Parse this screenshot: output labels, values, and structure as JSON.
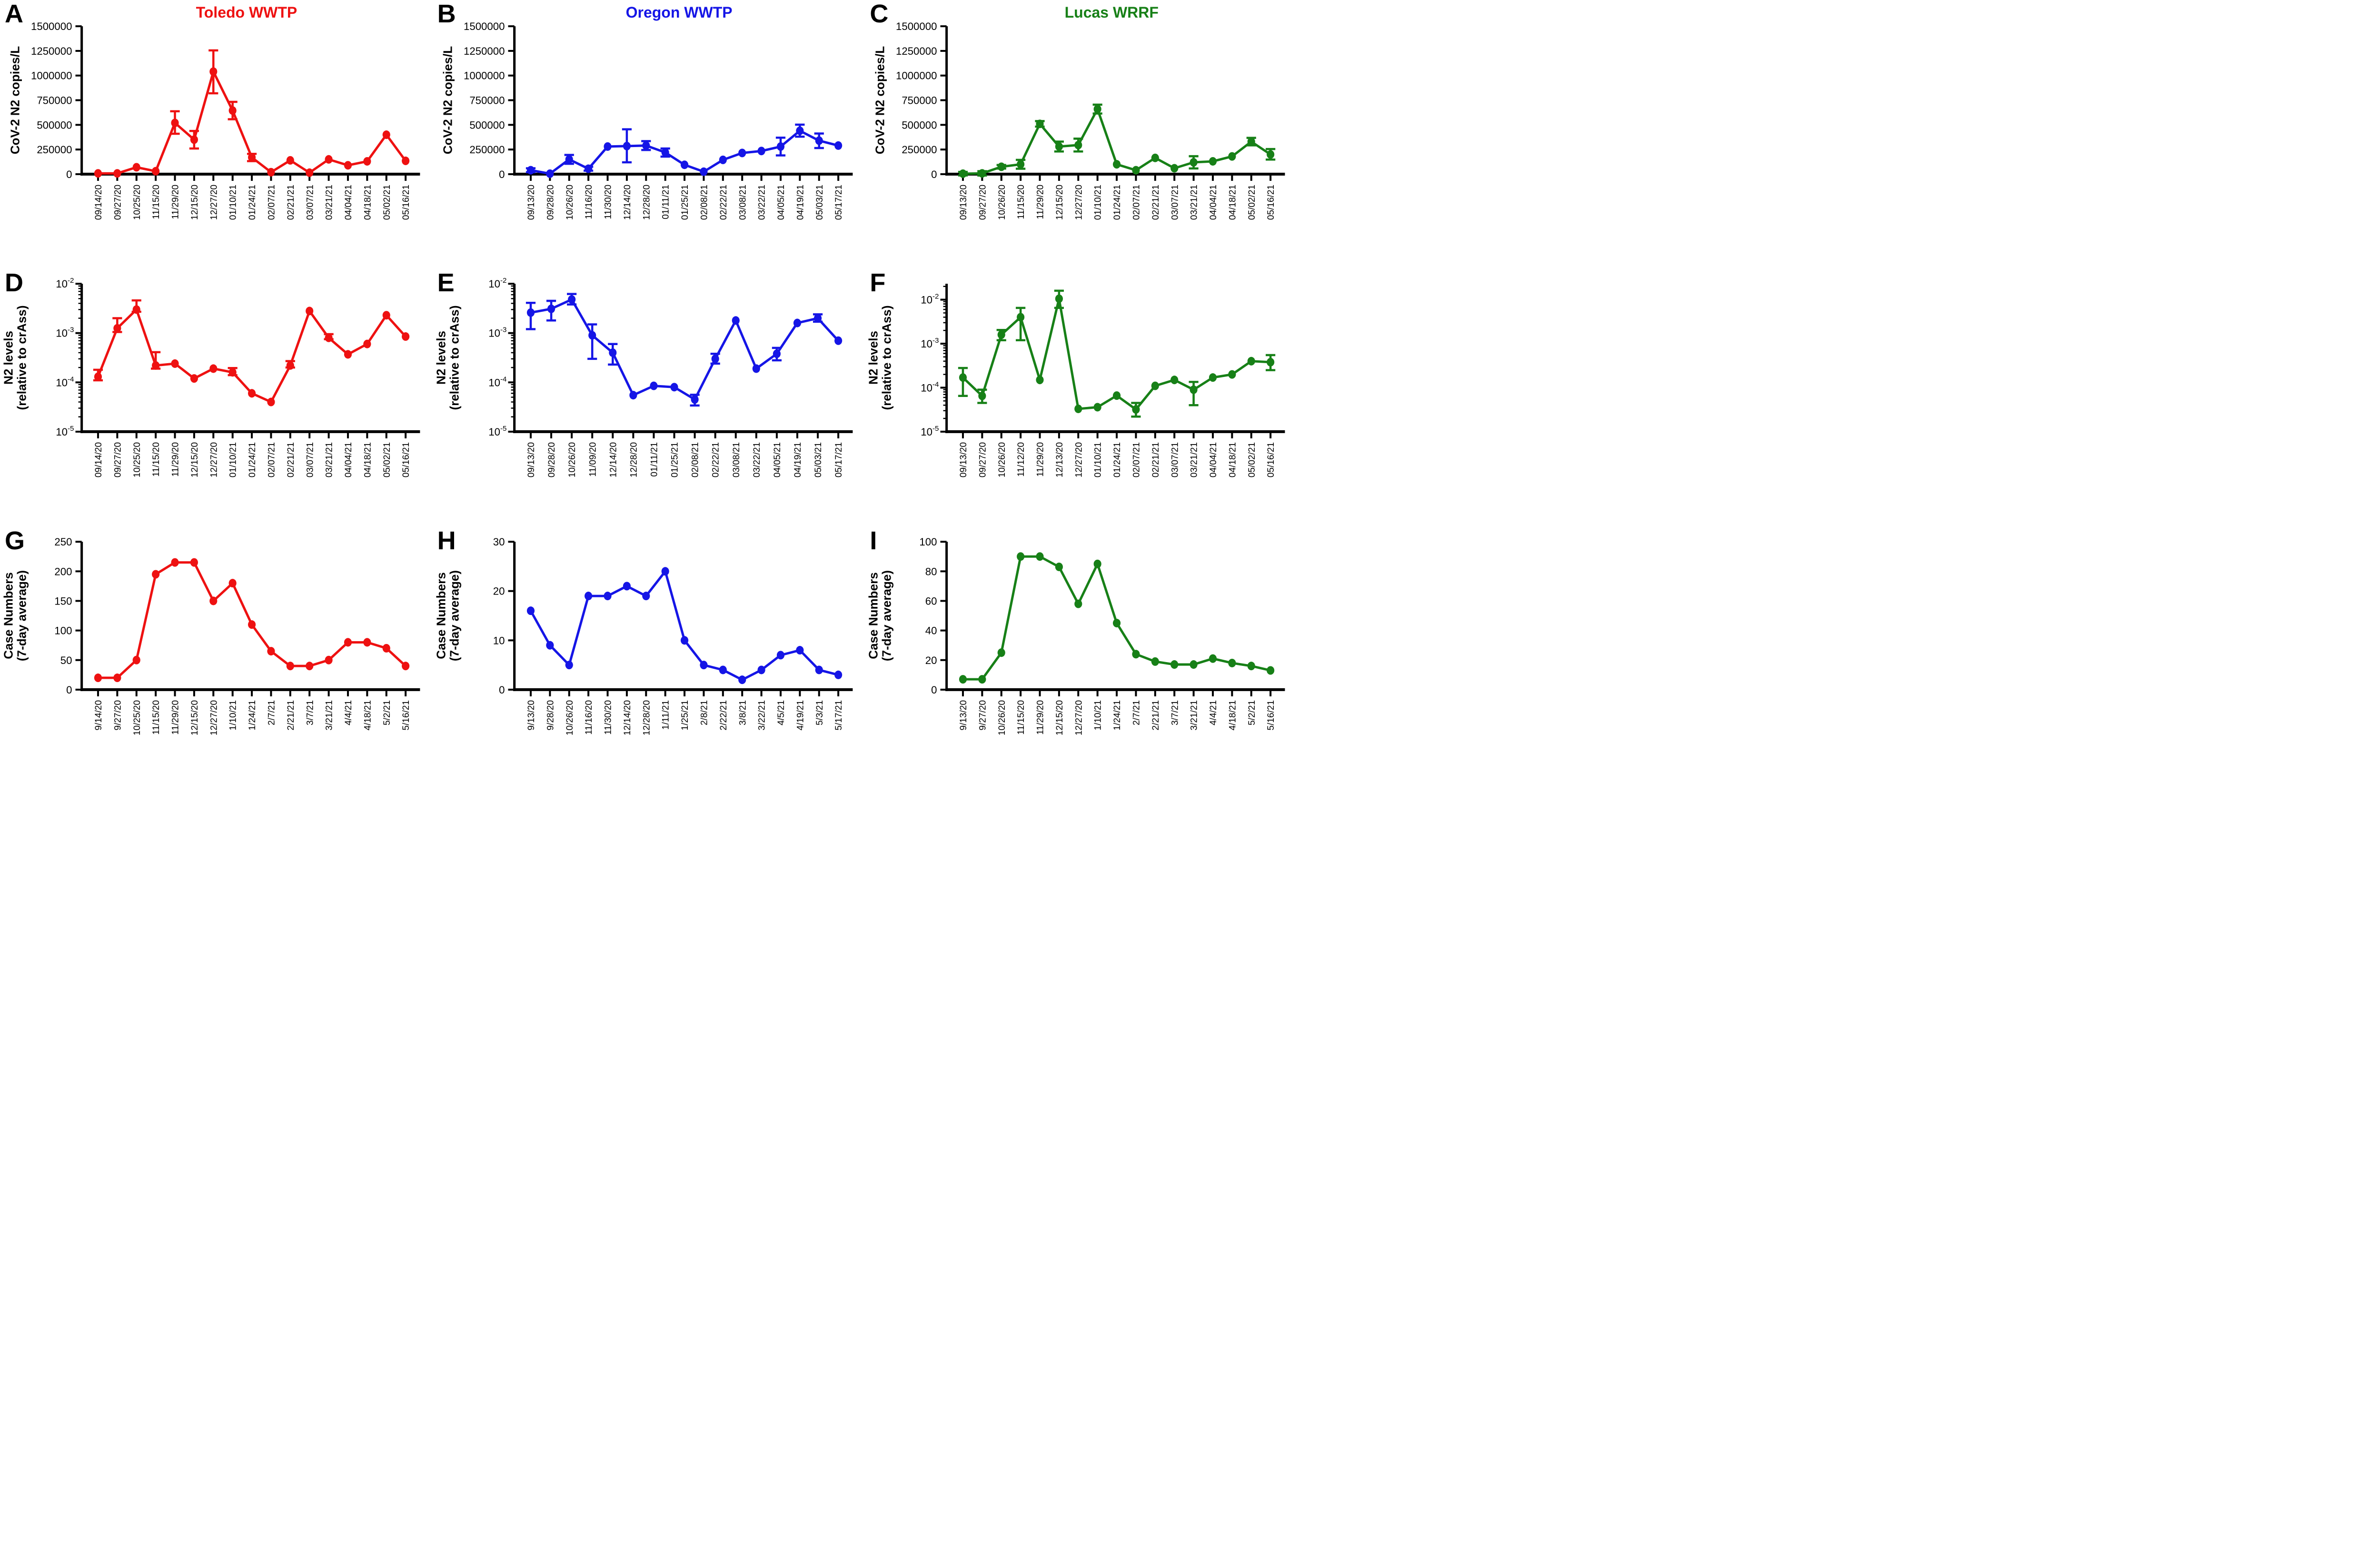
{
  "figure": {
    "background": "#ffffff"
  },
  "chart_data": [
    {
      "panel": "A",
      "title": "Toledo WWTP",
      "color": "#ee1111",
      "type": "line",
      "yscale": "linear",
      "ylim": [
        0,
        1500000
      ],
      "ystep": 250000,
      "grid": false,
      "legend": "none",
      "ylabel": [
        "CoV-2 N2 copies/L"
      ],
      "categories": [
        "09/14/20",
        "09/27/20",
        "10/25/20",
        "11/15/20",
        "11/29/20",
        "12/15/20",
        "12/27/20",
        "01/10/21",
        "01/24/21",
        "02/07/21",
        "02/21/21",
        "03/07/21",
        "03/21/21",
        "04/04/21",
        "04/18/21",
        "05/02/21",
        "05/16/21"
      ],
      "values": [
        8000,
        8000,
        70000,
        30000,
        520000,
        350000,
        1040000,
        645000,
        170000,
        20000,
        140000,
        15000,
        150000,
        90000,
        130000,
        400000,
        135000
      ],
      "err_lo": [
        null,
        null,
        null,
        null,
        110000,
        90000,
        220000,
        88000,
        38000,
        null,
        null,
        null,
        null,
        null,
        null,
        null,
        null
      ],
      "err_hi": [
        null,
        null,
        null,
        null,
        118000,
        88000,
        215000,
        88000,
        36000,
        null,
        null,
        null,
        null,
        null,
        null,
        null,
        null
      ]
    },
    {
      "panel": "B",
      "title": "Oregon WWTP",
      "color": "#1515e6",
      "type": "line",
      "yscale": "linear",
      "ylim": [
        0,
        1500000
      ],
      "ystep": 250000,
      "grid": false,
      "legend": "none",
      "ylabel": [
        "CoV-2 N2 copies/L"
      ],
      "categories": [
        "09/13/20",
        "09/28/20",
        "10/26/20",
        "11/16/20",
        "11/30/20",
        "12/14/20",
        "12/28/20",
        "01/11/21",
        "01/25/21",
        "02/08/21",
        "02/22/21",
        "03/08/21",
        "03/22/21",
        "04/05/21",
        "04/19/21",
        "05/03/21",
        "05/17/21"
      ],
      "values": [
        40000,
        5000,
        150000,
        55000,
        280000,
        285000,
        290000,
        220000,
        95000,
        25000,
        145000,
        215000,
        235000,
        280000,
        440000,
        340000,
        290000
      ],
      "err_lo": [
        20000,
        null,
        45000,
        20000,
        null,
        165000,
        45000,
        42000,
        null,
        null,
        null,
        null,
        null,
        90000,
        60000,
        75000,
        null
      ],
      "err_hi": [
        20000,
        null,
        45000,
        20000,
        null,
        170000,
        45000,
        40000,
        null,
        null,
        null,
        null,
        null,
        90000,
        62000,
        72000,
        null
      ]
    },
    {
      "panel": "C",
      "title": "Lucas WRRF",
      "color": "#178017",
      "type": "line",
      "yscale": "linear",
      "ylim": [
        0,
        1500000
      ],
      "ystep": 250000,
      "grid": false,
      "legend": "none",
      "ylabel": [
        "CoV-2 N2 copies/L"
      ],
      "categories": [
        "09/13/20",
        "09/27/20",
        "10/26/20",
        "11/15/20",
        "11/29/20",
        "12/15/20",
        "12/27/20",
        "01/10/21",
        "01/24/21",
        "02/07/21",
        "02/21/21",
        "03/07/21",
        "03/21/21",
        "04/04/21",
        "04/18/21",
        "05/02/21",
        "05/16/21"
      ],
      "values": [
        5000,
        8000,
        75000,
        100000,
        510000,
        280000,
        295000,
        660000,
        100000,
        40000,
        165000,
        60000,
        120000,
        130000,
        180000,
        330000,
        200000
      ],
      "err_lo": [
        18000,
        22000,
        18000,
        45000,
        28000,
        50000,
        65000,
        45000,
        null,
        null,
        null,
        null,
        62000,
        null,
        null,
        38000,
        52000
      ],
      "err_hi": [
        18000,
        22000,
        18000,
        45000,
        28000,
        50000,
        65000,
        45000,
        null,
        null,
        null,
        null,
        62000,
        null,
        null,
        38000,
        55000
      ]
    },
    {
      "panel": "D",
      "title": "",
      "color": "#ee1111",
      "type": "line",
      "yscale": "log",
      "ylim": [
        1e-05,
        0.01
      ],
      "grid": false,
      "legend": "none",
      "ylabel": [
        "N2 levels",
        "(relative to crAss)"
      ],
      "categories": [
        "09/14/20",
        "09/27/20",
        "10/25/20",
        "11/15/20",
        "11/29/20",
        "12/15/20",
        "12/27/20",
        "01/10/21",
        "01/24/21",
        "02/07/21",
        "02/21/21",
        "03/07/21",
        "03/21/21",
        "04/04/21",
        "04/18/21",
        "05/02/21",
        "05/16/21"
      ],
      "values": [
        0.00013,
        0.00125,
        0.003,
        0.00022,
        0.00024,
        0.00012,
        0.00019,
        0.00016,
        6e-05,
        4e-05,
        0.00022,
        0.0028,
        0.0008,
        0.00037,
        0.0006,
        0.0023,
        0.00085
      ],
      "err_lo": [
        2e-05,
        0.0002,
        0.0003,
        3e-05,
        null,
        null,
        null,
        2e-05,
        null,
        null,
        2e-05,
        null,
        5e-05,
        null,
        null,
        null,
        null
      ],
      "err_hi": [
        5e-05,
        0.00075,
        0.0016,
        0.00019,
        null,
        null,
        null,
        3.5e-05,
        null,
        null,
        5e-05,
        null,
        0.00015,
        null,
        null,
        null,
        null
      ]
    },
    {
      "panel": "E",
      "title": "",
      "color": "#1515e6",
      "type": "line",
      "yscale": "log",
      "ylim": [
        1e-05,
        0.01
      ],
      "grid": false,
      "legend": "none",
      "ylabel": [
        "N2 levels",
        "(relative to crAss)"
      ],
      "categories": [
        "09/13/20",
        "09/28/20",
        "10/26/20",
        "11/09/20",
        "12/14/20",
        "12/28/20",
        "01/11/21",
        "01/25/21",
        "02/08/21",
        "02/22/21",
        "03/08/21",
        "03/22/21",
        "04/05/21",
        "04/19/21",
        "05/03/21",
        "05/17/21"
      ],
      "values": [
        0.0026,
        0.0031,
        0.0048,
        0.0009,
        0.0004,
        5.5e-05,
        8.5e-05,
        8e-05,
        4.5e-05,
        0.0003,
        0.0018,
        0.00019,
        0.00038,
        0.0016,
        0.002,
        0.0007
      ],
      "err_lo": [
        0.0014,
        0.0013,
        0.001,
        0.0006,
        0.00017,
        null,
        null,
        null,
        1.1e-05,
        6e-05,
        null,
        null,
        0.0001,
        null,
        0.0003,
        null
      ],
      "err_hi": [
        0.0015,
        0.0014,
        0.0014,
        0.0006,
        0.0002,
        null,
        null,
        null,
        1.1e-05,
        8e-05,
        null,
        null,
        0.00012,
        null,
        0.0004,
        null
      ]
    },
    {
      "panel": "F",
      "title": "",
      "color": "#178017",
      "type": "line",
      "yscale": "log",
      "ylim": [
        1e-05,
        0.023
      ],
      "grid": false,
      "legend": "none",
      "ylabel": [
        "N2 levels",
        "(relative to crAss)"
      ],
      "categories": [
        "09/13/20",
        "09/27/20",
        "10/26/20",
        "11/12/20",
        "11/29/20",
        "12/13/20",
        "12/27/20",
        "01/10/21",
        "01/24/21",
        "02/07/21",
        "02/21/21",
        "03/07/21",
        "03/21/21",
        "04/04/21",
        "04/18/21",
        "05/02/21",
        "05/16/21"
      ],
      "values": [
        0.00017,
        6.5e-05,
        0.0016,
        0.004,
        0.00015,
        0.0105,
        3.3e-05,
        3.6e-05,
        6.6e-05,
        3.2e-05,
        0.00011,
        0.00015,
        9e-05,
        0.00017,
        0.0002,
        0.0004,
        0.00038
      ],
      "err_lo": [
        0.000105,
        2e-05,
        0.0004,
        0.0028,
        null,
        0.004,
        null,
        null,
        null,
        1e-05,
        null,
        null,
        5e-05,
        null,
        null,
        null,
        0.00013
      ],
      "err_hi": [
        0.00011,
        2.5e-05,
        0.00045,
        0.0025,
        null,
        0.0055,
        null,
        null,
        null,
        1.3e-05,
        null,
        null,
        4.5e-05,
        null,
        null,
        null,
        0.00017
      ]
    },
    {
      "panel": "G",
      "title": "",
      "color": "#ee1111",
      "type": "line",
      "yscale": "linear",
      "ylim": [
        0,
        250
      ],
      "ystep": 50,
      "grid": false,
      "legend": "none",
      "ylabel": [
        "Case Numbers",
        "(7-day average)"
      ],
      "categories": [
        "9/14/20",
        "9/27/20",
        "10/25/20",
        "11/15/20",
        "11/29/20",
        "12/15/20",
        "12/27/20",
        "1/10/21",
        "1/24/21",
        "2/7/21",
        "2/21/21",
        "3/7/21",
        "3/21/21",
        "4/4/21",
        "4/18/21",
        "5/2/21",
        "5/16/21"
      ],
      "values": [
        20,
        20,
        50,
        195,
        215,
        215,
        150,
        180,
        110,
        65,
        40,
        40,
        50,
        80,
        80,
        70,
        40
      ]
    },
    {
      "panel": "H",
      "title": "",
      "color": "#1515e6",
      "type": "line",
      "yscale": "linear",
      "ylim": [
        0,
        30
      ],
      "ystep": 10,
      "grid": false,
      "legend": "none",
      "ylabel": [
        "Case Numbers",
        "(7-day average)"
      ],
      "categories": [
        "9/13/20",
        "9/28/20",
        "10/26/20",
        "11/16/20",
        "11/30/20",
        "12/14/20",
        "12/28/20",
        "1/11/21",
        "1/25/21",
        "2/8/21",
        "2/22/21",
        "3/8/21",
        "3/22/21",
        "4/5/21",
        "4/19/21",
        "5/3/21",
        "5/17/21"
      ],
      "values": [
        16,
        9,
        5,
        19,
        19,
        21,
        19,
        24,
        10,
        5,
        4,
        2,
        4,
        7,
        8,
        4,
        3
      ]
    },
    {
      "panel": "I",
      "title": "",
      "color": "#178017",
      "type": "line",
      "yscale": "linear",
      "ylim": [
        0,
        100
      ],
      "ystep": 20,
      "grid": false,
      "legend": "none",
      "ylabel": [
        "Case Numbers",
        "(7-day average)"
      ],
      "categories": [
        "9/13/20",
        "9/27/20",
        "10/26/20",
        "11/15/20",
        "11/29/20",
        "12/15/20",
        "12/27/20",
        "1/10/21",
        "1/24/21",
        "2/7/21",
        "2/21/21",
        "3/7/21",
        "3/21/21",
        "4/4/21",
        "4/18/21",
        "5/2/21",
        "5/16/21"
      ],
      "values": [
        7,
        7,
        25,
        90,
        90,
        83,
        58,
        85,
        45,
        24,
        19,
        17,
        17,
        21,
        18,
        16,
        13
      ]
    }
  ]
}
